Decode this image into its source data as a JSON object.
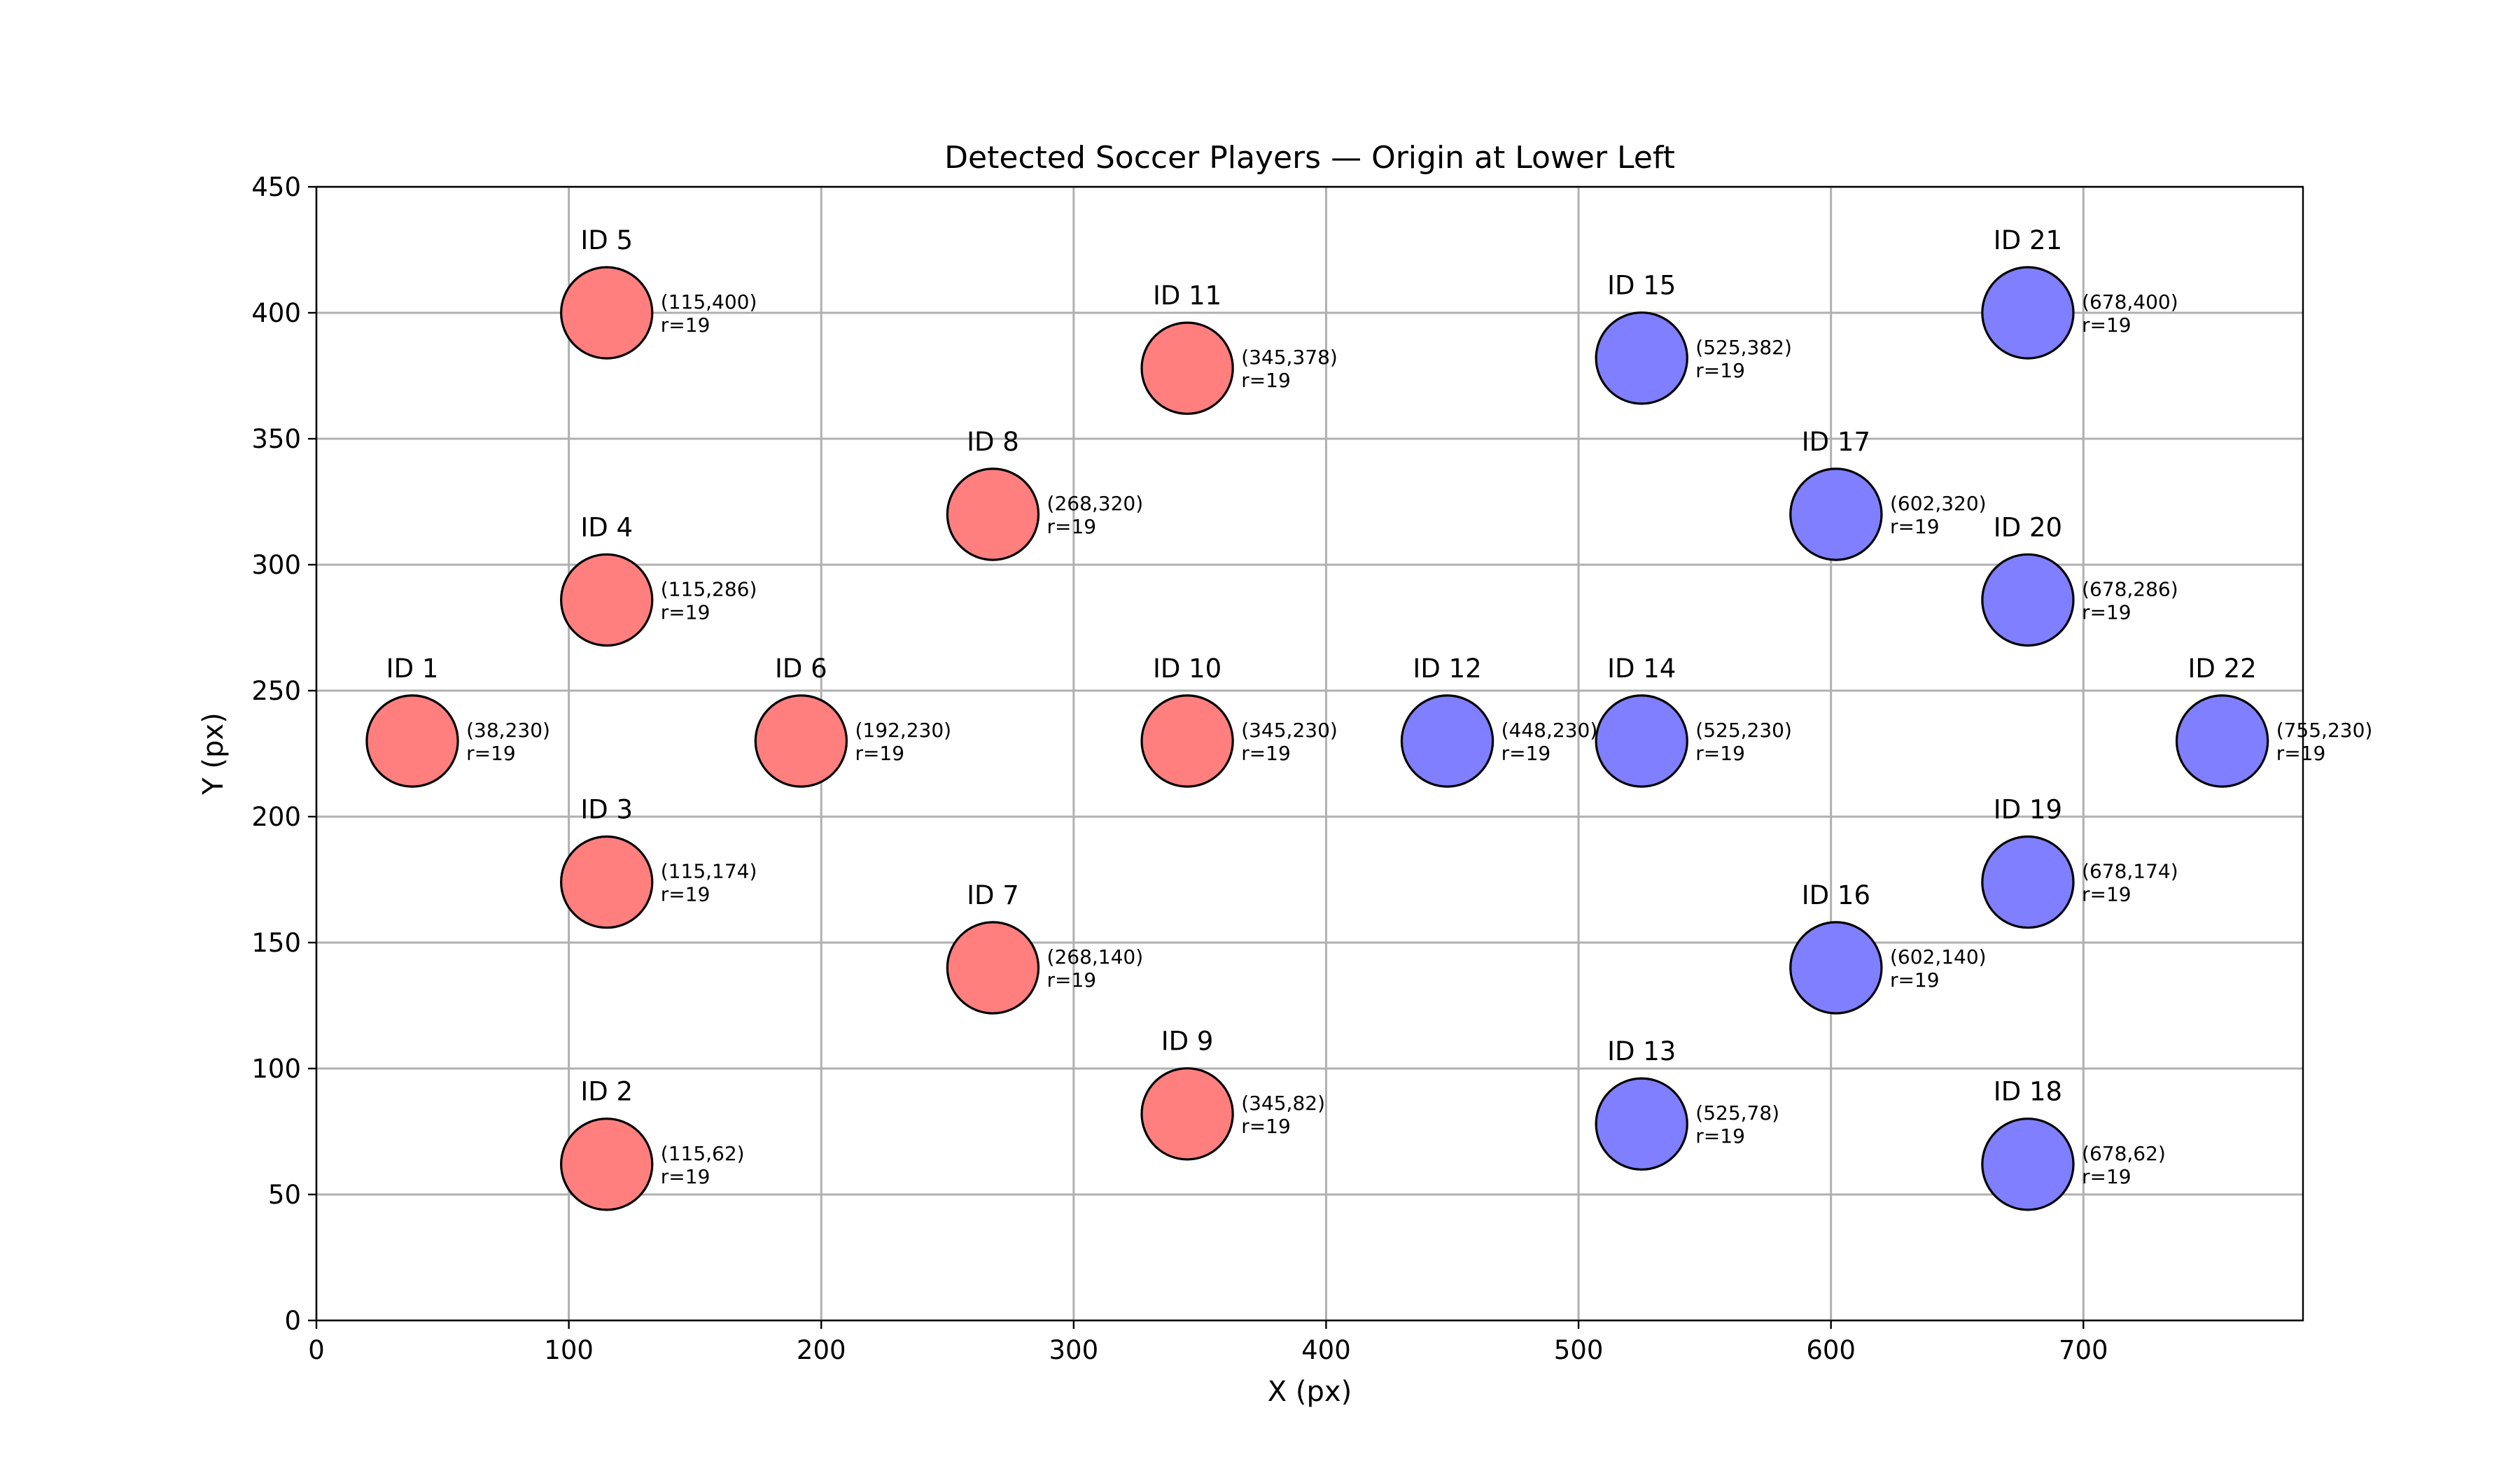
{
  "chart_data": {
    "type": "scatter",
    "title": "Detected Soccer Players — Origin at Lower Left",
    "xlabel": "X (px)",
    "ylabel": "Y (px)",
    "xlim": [
      0,
      787
    ],
    "ylim": [
      0,
      450
    ],
    "xticks": [
      0,
      100,
      200,
      300,
      400,
      500,
      600,
      700
    ],
    "yticks": [
      0,
      50,
      100,
      150,
      200,
      250,
      300,
      350,
      400,
      450
    ],
    "grid": true,
    "marker_radius_data_units": 19,
    "colors": {
      "red_team": "#ff7f7f",
      "blue_team": "#7f7fff",
      "edge": "#000000"
    },
    "points": [
      {
        "id_label": "ID 1",
        "x": 38,
        "y": 230,
        "coord_label": "(38,230)",
        "r_label": "r=19",
        "team": "red"
      },
      {
        "id_label": "ID 2",
        "x": 115,
        "y": 62,
        "coord_label": "(115,62)",
        "r_label": "r=19",
        "team": "red"
      },
      {
        "id_label": "ID 3",
        "x": 115,
        "y": 174,
        "coord_label": "(115,174)",
        "r_label": "r=19",
        "team": "red"
      },
      {
        "id_label": "ID 4",
        "x": 115,
        "y": 286,
        "coord_label": "(115,286)",
        "r_label": "r=19",
        "team": "red"
      },
      {
        "id_label": "ID 5",
        "x": 115,
        "y": 400,
        "coord_label": "(115,400)",
        "r_label": "r=19",
        "team": "red"
      },
      {
        "id_label": "ID 6",
        "x": 192,
        "y": 230,
        "coord_label": "(192,230)",
        "r_label": "r=19",
        "team": "red"
      },
      {
        "id_label": "ID 7",
        "x": 268,
        "y": 140,
        "coord_label": "(268,140)",
        "r_label": "r=19",
        "team": "red"
      },
      {
        "id_label": "ID 8",
        "x": 268,
        "y": 320,
        "coord_label": "(268,320)",
        "r_label": "r=19",
        "team": "red"
      },
      {
        "id_label": "ID 9",
        "x": 345,
        "y": 82,
        "coord_label": "(345,82)",
        "r_label": "r=19",
        "team": "red"
      },
      {
        "id_label": "ID 10",
        "x": 345,
        "y": 230,
        "coord_label": "(345,230)",
        "r_label": "r=19",
        "team": "red"
      },
      {
        "id_label": "ID 11",
        "x": 345,
        "y": 378,
        "coord_label": "(345,378)",
        "r_label": "r=19",
        "team": "red"
      },
      {
        "id_label": "ID 12",
        "x": 448,
        "y": 230,
        "coord_label": "(448,230)",
        "r_label": "r=19",
        "team": "blue"
      },
      {
        "id_label": "ID 13",
        "x": 525,
        "y": 78,
        "coord_label": "(525,78)",
        "r_label": "r=19",
        "team": "blue"
      },
      {
        "id_label": "ID 14",
        "x": 525,
        "y": 230,
        "coord_label": "(525,230)",
        "r_label": "r=19",
        "team": "blue"
      },
      {
        "id_label": "ID 15",
        "x": 525,
        "y": 382,
        "coord_label": "(525,382)",
        "r_label": "r=19",
        "team": "blue"
      },
      {
        "id_label": "ID 16",
        "x": 602,
        "y": 140,
        "coord_label": "(602,140)",
        "r_label": "r=19",
        "team": "blue"
      },
      {
        "id_label": "ID 17",
        "x": 602,
        "y": 320,
        "coord_label": "(602,320)",
        "r_label": "r=19",
        "team": "blue"
      },
      {
        "id_label": "ID 18",
        "x": 678,
        "y": 62,
        "coord_label": "(678,62)",
        "r_label": "r=19",
        "team": "blue"
      },
      {
        "id_label": "ID 19",
        "x": 678,
        "y": 174,
        "coord_label": "(678,174)",
        "r_label": "r=19",
        "team": "blue"
      },
      {
        "id_label": "ID 20",
        "x": 678,
        "y": 286,
        "coord_label": "(678,286)",
        "r_label": "r=19",
        "team": "blue"
      },
      {
        "id_label": "ID 21",
        "x": 678,
        "y": 400,
        "coord_label": "(678,400)",
        "r_label": "r=19",
        "team": "blue"
      },
      {
        "id_label": "ID 22",
        "x": 755,
        "y": 230,
        "coord_label": "(755,230)",
        "r_label": "r=19",
        "team": "blue"
      }
    ]
  }
}
